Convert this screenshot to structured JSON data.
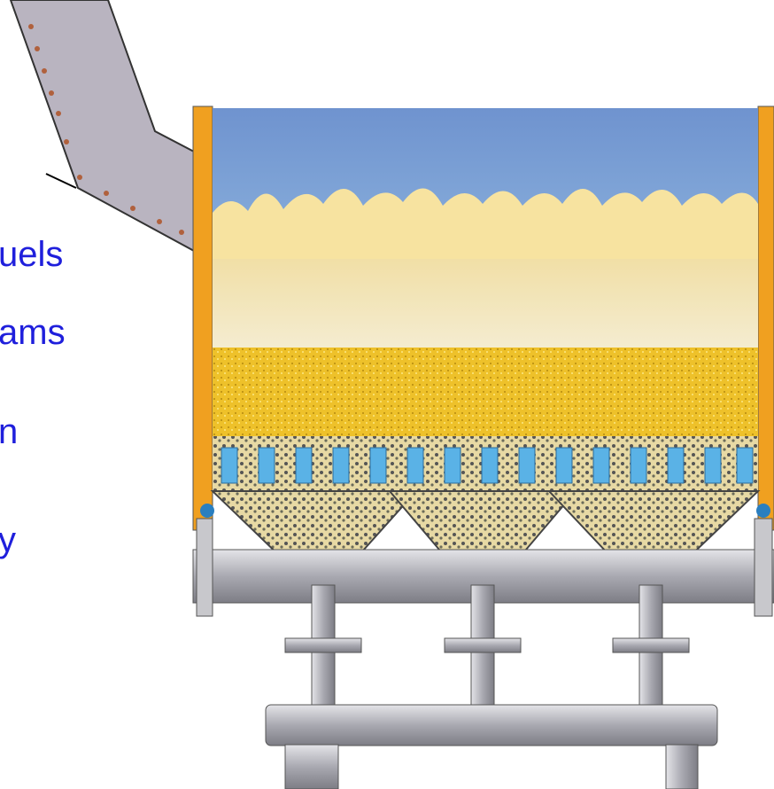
{
  "labels": [
    "uels",
    "ams",
    "n",
    "y"
  ]
}
